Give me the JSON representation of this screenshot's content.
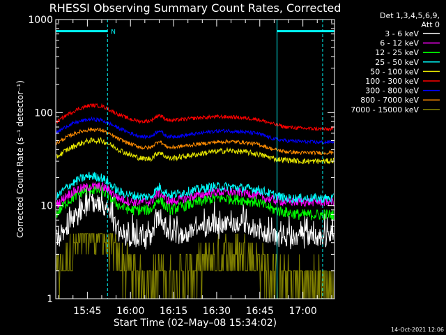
{
  "chart_data": {
    "type": "line",
    "title": "RHESSI Observing Summary Count Rates, Corrected",
    "xlabel": "Start Time (02–May–08 15:34:02)",
    "ylabel": "Corrected Count Rate (s⁻¹ detector⁻¹)",
    "yscale": "log",
    "ylim": [
      1,
      1000
    ],
    "xlim_minutes": [
      0,
      97
    ],
    "x_ticks": [
      {
        "label": "15:45",
        "t": 11
      },
      {
        "label": "16:00",
        "t": 26
      },
      {
        "label": "16:15",
        "t": 41
      },
      {
        "label": "16:30",
        "t": 56
      },
      {
        "label": "16:45",
        "t": 71
      },
      {
        "label": "17:00",
        "t": 86
      }
    ],
    "y_ticks": [
      {
        "label": "1",
        "v": 1
      },
      {
        "label": "10",
        "v": 10
      },
      {
        "label": "100",
        "v": 100
      },
      {
        "label": "1000",
        "v": 1000
      }
    ],
    "legend_header": [
      "Det 1,3,4,5,6,9,",
      "Att 0"
    ],
    "legend_placement": "top-right",
    "series": [
      {
        "name": "3 - 6 keV",
        "color": "#ffffff",
        "t": [
          0,
          4,
          8,
          12,
          16,
          18,
          22,
          26,
          30,
          33,
          36,
          38,
          40,
          45,
          50,
          55,
          60,
          65,
          70,
          73,
          76,
          80,
          85,
          90,
          95,
          97
        ],
        "values": [
          4.5,
          6,
          8.5,
          10,
          10.5,
          9,
          5,
          4.5,
          4.5,
          4.5,
          8,
          6,
          4.5,
          5,
          5.5,
          6,
          6.5,
          6.5,
          5.5,
          5,
          4.5,
          4.5,
          4.5,
          4.5,
          4.5,
          4.5
        ]
      },
      {
        "name": "6 - 12 keV",
        "color": "#ff00ff",
        "t": [
          0,
          4,
          8,
          12,
          16,
          18,
          22,
          26,
          30,
          33,
          36,
          38,
          40,
          45,
          50,
          55,
          60,
          65,
          70,
          73,
          76,
          80,
          85,
          90,
          95,
          97
        ],
        "values": [
          10,
          13,
          15,
          16,
          16,
          15,
          12,
          11,
          11,
          11,
          14,
          12,
          11,
          12,
          13,
          14,
          14,
          14,
          13,
          12,
          11.5,
          11,
          11,
          11,
          11,
          11
        ]
      },
      {
        "name": "12 - 25 keV",
        "color": "#00ff00",
        "t": [
          0,
          4,
          8,
          12,
          16,
          18,
          22,
          26,
          30,
          33,
          36,
          38,
          40,
          45,
          50,
          55,
          60,
          65,
          70,
          73,
          76,
          80,
          85,
          90,
          95,
          97
        ],
        "values": [
          8,
          11,
          13.5,
          15,
          14.5,
          13,
          10,
          9,
          9,
          9,
          12,
          10,
          9,
          10,
          11,
          12,
          12,
          11.5,
          11,
          10,
          9,
          8.5,
          8,
          8,
          8,
          8
        ]
      },
      {
        "name": "25 - 50 keV",
        "color": "#00ffff",
        "t": [
          0,
          4,
          8,
          12,
          16,
          18,
          22,
          26,
          30,
          33,
          36,
          38,
          40,
          45,
          50,
          55,
          60,
          65,
          70,
          73,
          76,
          80,
          85,
          90,
          95,
          97
        ],
        "values": [
          12,
          16,
          19,
          21,
          20,
          18,
          14,
          13,
          12.5,
          12.5,
          16,
          14,
          13,
          14,
          15,
          16,
          16,
          15.5,
          15,
          14,
          13,
          12,
          12,
          12,
          12,
          12
        ]
      },
      {
        "name": "50 - 100 keV",
        "color": "#e6e600",
        "t": [
          0,
          4,
          8,
          12,
          16,
          18,
          22,
          26,
          30,
          33,
          36,
          38,
          40,
          45,
          50,
          55,
          60,
          65,
          70,
          73,
          76,
          80,
          85,
          90,
          95,
          97
        ],
        "values": [
          33,
          40,
          46,
          50,
          50,
          47,
          40,
          35,
          32,
          32,
          38,
          34,
          32,
          34,
          36,
          38,
          39,
          38,
          36,
          34,
          32,
          31,
          30,
          30,
          30,
          31
        ]
      },
      {
        "name": "100 - 300 keV",
        "color": "#ff0000",
        "t": [
          0,
          4,
          8,
          12,
          16,
          18,
          22,
          26,
          30,
          33,
          36,
          38,
          40,
          45,
          50,
          55,
          60,
          65,
          70,
          73,
          76,
          80,
          85,
          90,
          95,
          97
        ],
        "values": [
          78,
          95,
          110,
          120,
          118,
          110,
          95,
          85,
          80,
          82,
          95,
          86,
          82,
          85,
          88,
          90,
          90,
          88,
          85,
          80,
          75,
          70,
          68,
          67,
          66,
          68
        ]
      },
      {
        "name": "300 - 800 keV",
        "color": "#0000ff",
        "t": [
          0,
          4,
          8,
          12,
          16,
          18,
          22,
          26,
          30,
          33,
          36,
          38,
          40,
          45,
          50,
          55,
          60,
          65,
          70,
          73,
          76,
          80,
          85,
          90,
          95,
          97
        ],
        "values": [
          60,
          72,
          80,
          85,
          83,
          78,
          68,
          60,
          55,
          55,
          65,
          57,
          55,
          57,
          60,
          63,
          64,
          62,
          60,
          56,
          52,
          50,
          49,
          48,
          48,
          49
        ]
      },
      {
        "name": "800 - 7000 keV",
        "color": "#ff8c00",
        "t": [
          0,
          4,
          8,
          12,
          16,
          18,
          22,
          26,
          30,
          33,
          36,
          38,
          40,
          45,
          50,
          55,
          60,
          65,
          70,
          73,
          76,
          80,
          85,
          90,
          95,
          97
        ],
        "values": [
          46,
          55,
          62,
          66,
          65,
          60,
          52,
          46,
          42,
          42,
          50,
          44,
          42,
          44,
          46,
          48,
          49,
          48,
          46,
          43,
          40,
          38,
          37,
          37,
          37,
          38
        ]
      },
      {
        "name": "7000 - 15000 keV",
        "color": "#808000",
        "t": [
          0,
          4,
          8,
          12,
          16,
          18,
          22,
          26,
          30,
          33,
          36,
          38,
          40,
          45,
          50,
          55,
          60,
          65,
          70,
          73,
          76,
          80,
          85,
          90,
          95,
          97
        ],
        "values": [
          1.8,
          2.5,
          4,
          5,
          5,
          4,
          2.5,
          2,
          1.5,
          1.5,
          2,
          1.5,
          1.5,
          1.7,
          2,
          2.5,
          3,
          3,
          2.5,
          2,
          1.7,
          1.5,
          1.5,
          1.5,
          1.5,
          1.5
        ]
      }
    ],
    "flags": [
      {
        "label": "N",
        "t_start": 0,
        "t_end": 18,
        "value": 750,
        "color": "#00ffff"
      },
      {
        "label": "",
        "t_start": 77,
        "t_end": 97,
        "value": 750,
        "color": "#00ffff"
      }
    ],
    "night_boundaries_minutes": [
      18,
      77,
      97
    ],
    "timestamp": "14-Oct-2021 12:06"
  }
}
